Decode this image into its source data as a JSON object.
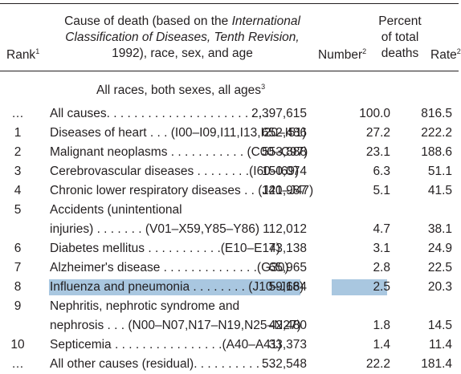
{
  "header": {
    "rank": "Rank",
    "rank_sup": "1",
    "cause_line1_pre": "Cause of death (based on the ",
    "cause_line1_it": "International",
    "cause_line2_it": "Classification of Diseases, Tenth Revision,",
    "cause_line3": "1992), race, sex, and age",
    "number": "Number",
    "number_sup": "2",
    "percent_line1": "Percent",
    "percent_line2": "of total",
    "percent_line3": "deaths",
    "rate": "Rate",
    "rate_sup": "2"
  },
  "section": {
    "title": "All races, both sexes, all ages",
    "title_sup": "3"
  },
  "rows": [
    {
      "rank": "…",
      "cause": "All causes. . . . . . . . . . . . . . . . . . . . . . . .",
      "number": "2,397,615",
      "percent": "100.0",
      "rate": "816.5"
    },
    {
      "rank": "1",
      "cause": "Diseases of heart . . . (I00–I09,I11,I13,I20–I51)",
      "number": "652,486",
      "percent": "27.2",
      "rate": "222.2"
    },
    {
      "rank": "2",
      "cause": "Malignant neoplasms . . . . . . . . . . . (C00–C97)",
      "number": "553,888",
      "percent": "23.1",
      "rate": "188.6"
    },
    {
      "rank": "3",
      "cause": "Cerebrovascular diseases . . . . . . . .(I60–I69)",
      "number": "150,074",
      "percent": "6.3",
      "rate": "51.1"
    },
    {
      "rank": "4",
      "cause": "Chronic lower respiratory diseases . . (J40–J47)",
      "number": "121,987",
      "percent": "5.1",
      "rate": "41.5"
    },
    {
      "rank": "5",
      "cause": "Accidents (unintentional",
      "number": "",
      "percent": "",
      "rate": ""
    },
    {
      "rank": "",
      "cause": "injuries) . . . . . . . (V01–X59,Y85–Y86)",
      "number": "112,012",
      "percent": "4.7",
      "rate": "38.1"
    },
    {
      "rank": "6",
      "cause": "Diabetes mellitus . . . . . . . . . . .(E10–E14)",
      "number": "73,138",
      "percent": "3.1",
      "rate": "24.9"
    },
    {
      "rank": "7",
      "cause": "Alzheimer's disease . . . . . . . . . . . . . .(G30)",
      "number": "65,965",
      "percent": "2.8",
      "rate": "22.5"
    },
    {
      "rank": "8",
      "cause": "Influenza and pneumonia . . . . . . . . (J10–J18)",
      "number": "59,664",
      "percent": "2.5",
      "rate": "20.3",
      "highlight": true
    },
    {
      "rank": "9",
      "cause": "Nephritis, nephrotic syndrome and",
      "number": "",
      "percent": "",
      "rate": ""
    },
    {
      "rank": "",
      "cause": "nephrosis . . . (N00–N07,N17–N19,N25–N27)",
      "number": "42,480",
      "percent": "1.8",
      "rate": "14.5"
    },
    {
      "rank": "10",
      "cause": "Septicemia . . . . . . . . . . . . . . . .(A40–A41)",
      "number": "33,373",
      "percent": "1.4",
      "rate": "11.4"
    },
    {
      "rank": "…",
      "cause": "All other causes (residual). . . . . . . . . . . .",
      "number": "532,548",
      "percent": "22.2",
      "rate": "181.4"
    }
  ],
  "colors": {
    "highlight": "#a9c7e0",
    "rule": "#231f20"
  }
}
